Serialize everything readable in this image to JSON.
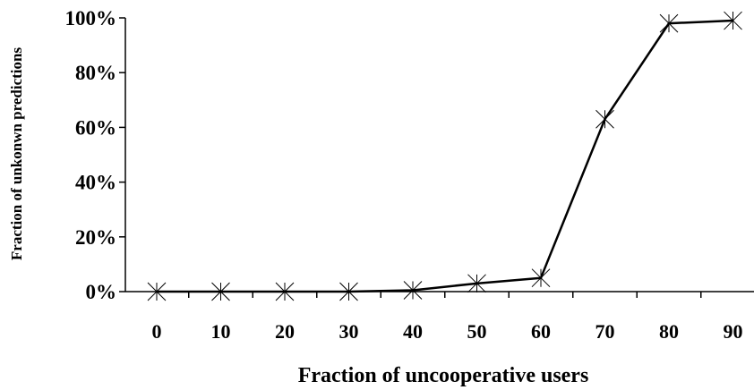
{
  "chart_data": {
    "type": "line",
    "title": "",
    "xlabel": "Fraction of uncooperative users",
    "ylabel": "Fraction of unkonwn predictions",
    "categories": [
      "0",
      "10",
      "20",
      "30",
      "40",
      "50",
      "60",
      "70",
      "80",
      "90"
    ],
    "series": [
      {
        "values": [
          0,
          0,
          0,
          0,
          0.5,
          3,
          5,
          63,
          98,
          99
        ]
      }
    ],
    "y_ticks": [
      "0%",
      "20%",
      "40%",
      "60%",
      "80%",
      "100%"
    ],
    "ylim": [
      0,
      100
    ],
    "grid": false,
    "legend": "none",
    "marker": "asterisk",
    "line_color": "#000000"
  }
}
